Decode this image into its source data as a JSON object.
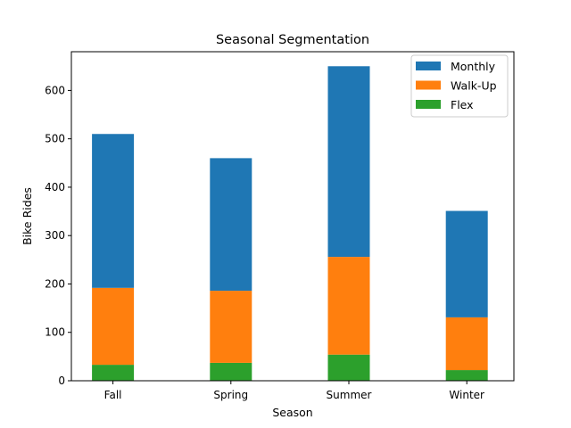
{
  "chart_data": {
    "type": "bar",
    "stacked": true,
    "title": "Seasonal Segmentation",
    "xlabel": "Season",
    "ylabel": "Bike Rides",
    "categories": [
      "Fall",
      "Spring",
      "Summer",
      "Winter"
    ],
    "ylim": [
      0,
      680
    ],
    "yticks": [
      0,
      100,
      200,
      300,
      400,
      500,
      600
    ],
    "grid": false,
    "legend_position": "top-right",
    "series": [
      {
        "name": "Flex",
        "color": "#2ca02c",
        "values": [
          33,
          37,
          54,
          22
        ]
      },
      {
        "name": "Walk-Up",
        "color": "#ff7f0e",
        "values": [
          159,
          149,
          202,
          109
        ]
      },
      {
        "name": "Monthly",
        "color": "#1f77b4",
        "values": [
          318,
          274,
          394,
          220
        ]
      }
    ],
    "legend_order": [
      "Monthly",
      "Walk-Up",
      "Flex"
    ]
  }
}
